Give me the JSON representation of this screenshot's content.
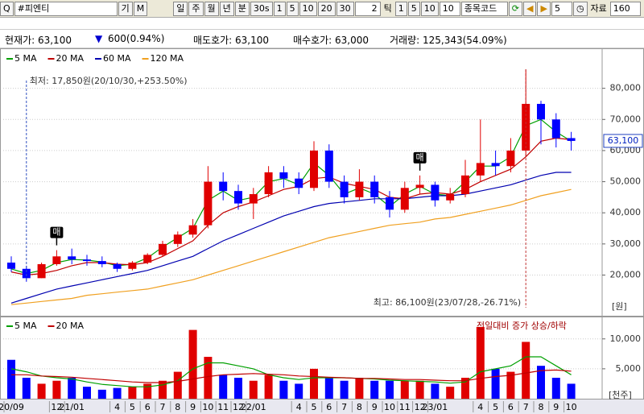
{
  "toolbar": {
    "search_icon": "Q",
    "search_text": "#피엔티",
    "left_buttons": [
      "기",
      "M"
    ],
    "period_buttons": [
      "일",
      "주",
      "월",
      "년",
      "분",
      "30s",
      "1",
      "5",
      "10",
      "20",
      "30"
    ],
    "tick_count": "2",
    "tick_label": "틱",
    "tick_buttons": [
      "1",
      "5",
      "10"
    ],
    "tick_box": "10",
    "code_label": "종목코드",
    "step": "5",
    "data_label": "자료",
    "data_count": "160"
  },
  "info": {
    "current_price": "현재가: 63,100",
    "change_arrow": "▼",
    "change": "600(0.94%)",
    "ask": "매도호가: 63,100",
    "bid": "매수호가: 63,000",
    "volume": "거래량: 125,343(54.09%)"
  },
  "chart_data": [
    {
      "type": "candlestick",
      "categories": [
        "20/09",
        null,
        null,
        "12",
        "21/01",
        null,
        null,
        "4",
        "5",
        "6",
        "7",
        "8",
        "9",
        "10",
        "11",
        "12",
        "22/01",
        null,
        null,
        "4",
        "5",
        "6",
        "7",
        "8",
        "9",
        "10",
        "11",
        "12",
        "23/01",
        null,
        null,
        "4",
        "5",
        "6",
        "7",
        "8",
        "9",
        "10"
      ],
      "open": [
        24000,
        22000,
        19000,
        23500,
        26000,
        25000,
        24500,
        23500,
        22000,
        24000,
        26500,
        30000,
        33000,
        36000,
        50000,
        47000,
        43000,
        46000,
        53000,
        51000,
        48000,
        60000,
        50000,
        45000,
        50000,
        45000,
        41000,
        48000,
        49000,
        44000,
        46000,
        52000,
        56000,
        55000,
        60000,
        75000,
        70000,
        64000
      ],
      "high": [
        26000,
        23000,
        24000,
        28000,
        28500,
        26500,
        26000,
        24000,
        24500,
        27000,
        31000,
        34000,
        38000,
        55000,
        53000,
        49000,
        48000,
        55000,
        55000,
        53000,
        63000,
        62000,
        52000,
        54000,
        52000,
        47000,
        50000,
        52000,
        50000,
        48000,
        57000,
        70000,
        60000,
        64000,
        86100,
        76000,
        72000,
        66000
      ],
      "low": [
        21000,
        17850,
        19000,
        23000,
        23500,
        23000,
        22500,
        21000,
        21500,
        23500,
        26000,
        29000,
        32000,
        35000,
        44000,
        41000,
        38000,
        45000,
        48000,
        46000,
        47000,
        48000,
        43000,
        44000,
        43000,
        38500,
        40000,
        46000,
        42000,
        43000,
        45000,
        50000,
        52000,
        53000,
        58000,
        62000,
        61000,
        60000
      ],
      "close": [
        22000,
        19000,
        23500,
        26000,
        25000,
        24500,
        23500,
        22000,
        24000,
        26500,
        30000,
        33000,
        36000,
        50000,
        47000,
        43000,
        46000,
        53000,
        51000,
        48000,
        60000,
        50000,
        45000,
        50000,
        45000,
        41000,
        48000,
        49000,
        44000,
        46000,
        52000,
        56000,
        55000,
        60000,
        75000,
        70000,
        64000,
        63100
      ],
      "up_color": "#e00000",
      "down_color": "#0000ff",
      "series": [
        {
          "name": "5 MA",
          "color": "#00a000",
          "values": [
            22000,
            20500,
            21500,
            24000,
            25000,
            24800,
            24200,
            23000,
            23500,
            25500,
            29000,
            32000,
            35000,
            44000,
            47000,
            44000,
            45000,
            50000,
            51000,
            49000,
            56000,
            52000,
            46000,
            48000,
            46000,
            42000,
            46000,
            48500,
            46000,
            45500,
            50000,
            55000,
            55000,
            58000,
            68000,
            70000,
            66000,
            63000
          ]
        },
        {
          "name": "20 MA",
          "color": "#c00000",
          "values": [
            21000,
            20000,
            20500,
            21500,
            23000,
            24000,
            24000,
            23500,
            23300,
            24000,
            26000,
            28500,
            31000,
            36000,
            40000,
            42000,
            43500,
            45500,
            47500,
            48500,
            51000,
            51500,
            49500,
            48500,
            47500,
            45000,
            44500,
            46000,
            46500,
            46000,
            47500,
            50000,
            52000,
            54000,
            58000,
            63000,
            64000,
            63500
          ]
        },
        {
          "name": "60 MA",
          "color": "#0000b0",
          "values": [
            11000,
            12500,
            14000,
            15500,
            16500,
            17500,
            18500,
            19500,
            20500,
            21500,
            23000,
            24500,
            26000,
            28500,
            31000,
            33000,
            35000,
            37000,
            39000,
            40500,
            42000,
            43000,
            43500,
            44000,
            44500,
            44500,
            44500,
            45000,
            45500,
            45500,
            46000,
            47000,
            48000,
            49000,
            50500,
            52000,
            53000,
            53000
          ]
        },
        {
          "name": "120 MA",
          "color": "#f0a020",
          "values": [
            10500,
            11000,
            11500,
            12000,
            12500,
            13500,
            14000,
            14500,
            15000,
            15500,
            16500,
            17500,
            18500,
            20000,
            21500,
            23000,
            24500,
            26000,
            27500,
            29000,
            30500,
            32000,
            33000,
            34000,
            35000,
            36000,
            36500,
            37000,
            38000,
            38500,
            39500,
            40500,
            41500,
            42500,
            44000,
            45500,
            46500,
            47500
          ]
        }
      ],
      "ylim": [
        9000,
        90000
      ],
      "yticks": [
        {
          "value": 20000,
          "label": "20,000"
        },
        {
          "value": 30000,
          "label": "30,000"
        },
        {
          "value": 40000,
          "label": "40,000"
        },
        {
          "value": 50000,
          "label": "50,000"
        },
        {
          "value": 60000,
          "label": "60,000"
        },
        {
          "value": 70000,
          "label": "70,000"
        },
        {
          "value": 80000,
          "label": "80,000"
        }
      ],
      "grid": true,
      "min_label": "최저: 17,850원(20/10/30,+253.50%)",
      "max_label": "최고: 86,100원(23/07/28,-26.71%)",
      "unit_label": "[원]",
      "current_label": "63,100",
      "signal_labels": [
        "매",
        "매"
      ]
    },
    {
      "type": "bar",
      "values": [
        6500,
        3500,
        2500,
        3000,
        3500,
        2000,
        1500,
        1800,
        2000,
        2500,
        3000,
        4500,
        11500,
        7000,
        4000,
        3500,
        3000,
        4000,
        3000,
        2500,
        5000,
        3500,
        3000,
        3500,
        3000,
        3000,
        3000,
        3000,
        2500,
        2000,
        3500,
        12000,
        5000,
        4500,
        9500,
        5500,
        3500,
        2500
      ],
      "series": [
        {
          "name": "5 MA",
          "color": "#00a000",
          "values": [
            5000,
            4500,
            3800,
            3500,
            3300,
            2800,
            2400,
            2200,
            2000,
            2000,
            2300,
            3000,
            5000,
            6000,
            6000,
            5500,
            5000,
            4000,
            3500,
            3200,
            3500,
            3500,
            3500,
            3400,
            3300,
            3100,
            3000,
            2900,
            2800,
            2600,
            2800,
            4500,
            5000,
            5500,
            7000,
            7000,
            5500,
            4000
          ]
        },
        {
          "name": "20 MA",
          "color": "#c00000",
          "values": [
            4000,
            4000,
            3800,
            3700,
            3600,
            3400,
            3200,
            3000,
            2800,
            2700,
            2700,
            2900,
            3300,
            3700,
            4000,
            4100,
            4200,
            4100,
            4000,
            3800,
            3700,
            3600,
            3500,
            3400,
            3400,
            3300,
            3200,
            3200,
            3100,
            3000,
            3000,
            3400,
            3700,
            3900,
            4300,
            4700,
            4800,
            4600
          ]
        }
      ],
      "ylim": [
        0,
        13200
      ],
      "yticks": [
        {
          "value": 5000,
          "label": "5,000"
        },
        {
          "value": 10000,
          "label": "10,000"
        }
      ],
      "grid": true,
      "legend_note": "전일대비 증가 상승/하락",
      "unit_label": "[천주]"
    }
  ]
}
